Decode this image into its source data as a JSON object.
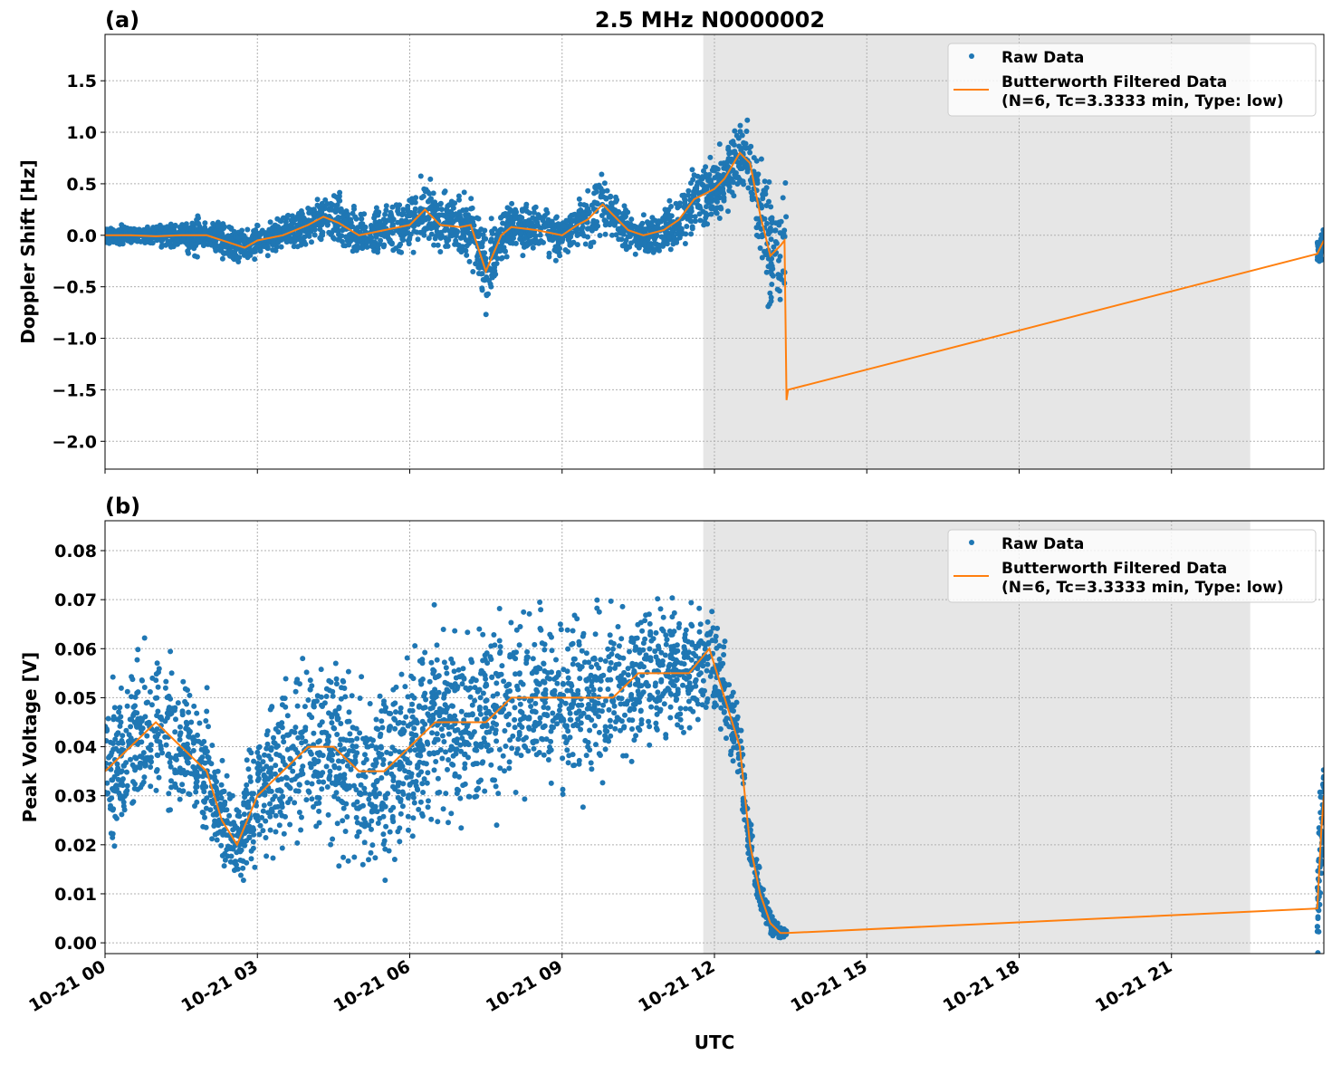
{
  "chart_data": [
    {
      "type": "scatter",
      "panel_label": "(a)",
      "title": "2.5 MHz N0000002",
      "xlabel": "",
      "ylabel": "Doppler Shift [Hz]",
      "x_unit": "hours after 10-21 00 UTC",
      "xlim": [
        0,
        24
      ],
      "ylim": [
        -2.27,
        1.95
      ],
      "yticks": [
        -2.0,
        -1.5,
        -1.0,
        -0.5,
        0.0,
        0.5,
        1.0,
        1.5
      ],
      "ytick_labels": [
        "−2.0",
        "−1.5",
        "−1.0",
        "−0.5",
        "0.0",
        "0.5",
        "1.0",
        "1.5"
      ],
      "grid": true,
      "legend_position": "top-right",
      "shaded_span": [
        11.78,
        22.55
      ],
      "series": [
        {
          "name": "Raw Data",
          "kind": "points",
          "color": "#1f77b4",
          "envelope_halfwidth": [
            [
              0,
              0.12
            ],
            [
              1.5,
              0.15
            ],
            [
              1.8,
              0.3
            ],
            [
              2,
              0.15
            ],
            [
              2.5,
              0.3
            ],
            [
              3,
              0.2
            ],
            [
              4,
              0.25
            ],
            [
              4.6,
              0.35
            ],
            [
              5,
              0.3
            ],
            [
              6,
              0.35
            ],
            [
              6.3,
              0.45
            ],
            [
              7,
              0.35
            ],
            [
              7.5,
              0.55
            ],
            [
              8,
              0.3
            ],
            [
              9,
              0.3
            ],
            [
              9.7,
              0.4
            ],
            [
              10.5,
              0.25
            ],
            [
              11,
              0.3
            ],
            [
              12,
              0.45
            ],
            [
              12.6,
              0.55
            ],
            [
              13,
              0.8
            ],
            [
              13.3,
              0.9
            ],
            [
              13.42,
              0.9
            ],
            [
              23.87,
              0.2
            ],
            [
              24,
              0.2
            ]
          ]
        },
        {
          "name": "Butterworth Filtered Data\n(N=6, Tc=3.3333 min, Type: low)",
          "kind": "line",
          "color": "#ff7f0e",
          "points": [
            [
              0,
              0
            ],
            [
              0.5,
              0
            ],
            [
              1,
              -0.01
            ],
            [
              1.5,
              0
            ],
            [
              2,
              0
            ],
            [
              2.5,
              -0.08
            ],
            [
              2.75,
              -0.12
            ],
            [
              3,
              -0.05
            ],
            [
              3.5,
              0
            ],
            [
              4,
              0.1
            ],
            [
              4.3,
              0.18
            ],
            [
              4.6,
              0.12
            ],
            [
              5,
              0.0
            ],
            [
              5.5,
              0.05
            ],
            [
              6,
              0.1
            ],
            [
              6.3,
              0.25
            ],
            [
              6.6,
              0.1
            ],
            [
              7,
              0.08
            ],
            [
              7.2,
              0.1
            ],
            [
              7.5,
              -0.35
            ],
            [
              7.8,
              0.0
            ],
            [
              8,
              0.08
            ],
            [
              8.5,
              0.05
            ],
            [
              9,
              0.0
            ],
            [
              9.3,
              0.1
            ],
            [
              9.5,
              0.15
            ],
            [
              9.8,
              0.3
            ],
            [
              10,
              0.2
            ],
            [
              10.3,
              0.05
            ],
            [
              10.6,
              0.0
            ],
            [
              11,
              0.05
            ],
            [
              11.3,
              0.15
            ],
            [
              11.6,
              0.35
            ],
            [
              12,
              0.45
            ],
            [
              12.2,
              0.55
            ],
            [
              12.5,
              0.8
            ],
            [
              12.7,
              0.7
            ],
            [
              12.9,
              0.2
            ],
            [
              13.1,
              -0.2
            ],
            [
              13.3,
              -0.1
            ],
            [
              13.38,
              -0.05
            ],
            [
              13.42,
              -1.6
            ],
            [
              13.45,
              -1.5
            ],
            [
              23.87,
              -0.18
            ],
            [
              24,
              -0.05
            ]
          ]
        }
      ]
    },
    {
      "type": "scatter",
      "panel_label": "(b)",
      "title": "",
      "xlabel": "UTC",
      "ylabel": "Peak Voltage [V]",
      "x_unit": "hours after 10-21 00 UTC",
      "xlim": [
        0,
        24
      ],
      "ylim": [
        -0.0022,
        0.0861
      ],
      "yticks": [
        0.0,
        0.01,
        0.02,
        0.03,
        0.04,
        0.05,
        0.06,
        0.07,
        0.08
      ],
      "ytick_labels": [
        "0.00",
        "0.01",
        "0.02",
        "0.03",
        "0.04",
        "0.05",
        "0.06",
        "0.07",
        "0.08"
      ],
      "xticks": [
        0,
        3,
        6,
        9,
        12,
        15,
        18,
        21
      ],
      "xtick_labels": [
        "10-21 00",
        "10-21 03",
        "10-21 06",
        "10-21 09",
        "10-21 12",
        "10-21 15",
        "10-21 18",
        "10-21 21"
      ],
      "grid": true,
      "legend_position": "top-right",
      "shaded_span": [
        11.78,
        22.55
      ],
      "series": [
        {
          "name": "Raw Data",
          "kind": "points",
          "color": "#1f77b4",
          "envelope_halfwidth": [
            [
              0,
              0.02
            ],
            [
              1,
              0.022
            ],
            [
              2,
              0.018
            ],
            [
              2.5,
              0.012
            ],
            [
              3,
              0.02
            ],
            [
              4,
              0.025
            ],
            [
              5,
              0.025
            ],
            [
              6,
              0.025
            ],
            [
              7,
              0.025
            ],
            [
              8,
              0.025
            ],
            [
              9,
              0.025
            ],
            [
              10,
              0.022
            ],
            [
              11,
              0.02
            ],
            [
              12,
              0.015
            ],
            [
              12.6,
              0.01
            ],
            [
              13,
              0.004
            ],
            [
              13.42,
              0.001
            ],
            [
              23.87,
              0.015
            ],
            [
              24,
              0.015
            ]
          ]
        },
        {
          "name": "Butterworth Filtered Data\n(N=6, Tc=3.3333 min, Type: low)",
          "kind": "line",
          "color": "#ff7f0e",
          "points": [
            [
              0,
              0.035
            ],
            [
              0.5,
              0.04
            ],
            [
              1,
              0.045
            ],
            [
              1.5,
              0.04
            ],
            [
              2,
              0.035
            ],
            [
              2.3,
              0.025
            ],
            [
              2.6,
              0.02
            ],
            [
              3,
              0.03
            ],
            [
              3.5,
              0.035
            ],
            [
              4,
              0.04
            ],
            [
              4.5,
              0.04
            ],
            [
              5,
              0.035
            ],
            [
              5.5,
              0.035
            ],
            [
              6,
              0.04
            ],
            [
              6.5,
              0.045
            ],
            [
              7,
              0.045
            ],
            [
              7.5,
              0.045
            ],
            [
              8,
              0.05
            ],
            [
              8.5,
              0.05
            ],
            [
              9,
              0.05
            ],
            [
              9.5,
              0.05
            ],
            [
              10,
              0.05
            ],
            [
              10.5,
              0.055
            ],
            [
              11,
              0.055
            ],
            [
              11.5,
              0.055
            ],
            [
              11.9,
              0.06
            ],
            [
              12.2,
              0.05
            ],
            [
              12.5,
              0.04
            ],
            [
              12.7,
              0.02
            ],
            [
              12.9,
              0.01
            ],
            [
              13.1,
              0.004
            ],
            [
              13.3,
              0.002
            ],
            [
              13.42,
              0.002
            ],
            [
              23.87,
              0.007
            ],
            [
              23.95,
              0.023
            ],
            [
              24,
              0.03
            ]
          ]
        }
      ]
    }
  ],
  "legend": {
    "raw_label": "Raw Data",
    "filtered_line1": "Butterworth Filtered Data",
    "filtered_line2": "(N=6, Tc=3.3333 min, Type: low)"
  }
}
